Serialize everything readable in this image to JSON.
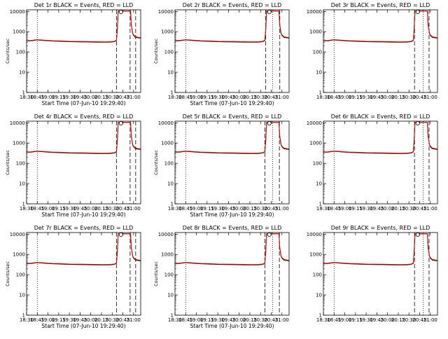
{
  "chart_data": [
    {
      "title": "Det 1r BLACK = Events, RED = LLD",
      "show_xlabel": true,
      "show_ylabel": true,
      "dashed_x": [
        20.6,
        20.92,
        21.05
      ],
      "dotted_x": [
        18.75
      ]
    },
    {
      "title": "Det 2r BLACK = Events, RED = LLD",
      "show_xlabel": true,
      "show_ylabel": true,
      "dashed_x": [
        20.62,
        20.95
      ],
      "dotted_x": [
        18.75,
        20.78
      ]
    },
    {
      "title": "Det 3r BLACK = Events, RED = LLD",
      "show_xlabel": false,
      "show_ylabel": false,
      "dashed_x": [
        20.63,
        20.97
      ],
      "dotted_x": [
        18.75,
        20.83
      ]
    },
    {
      "title": "Det 4r BLACK = Events, RED = LLD",
      "show_xlabel": true,
      "show_ylabel": true,
      "dashed_x": [
        20.6,
        20.92,
        21.05
      ],
      "dotted_x": [
        18.75
      ]
    },
    {
      "title": "Det 5r BLACK = Events, RED = LLD",
      "show_xlabel": true,
      "show_ylabel": true,
      "dashed_x": [
        20.6,
        20.94
      ],
      "dotted_x": [
        18.75,
        20.78
      ]
    },
    {
      "title": "Det 6r BLACK = Events, RED = LLD",
      "show_xlabel": false,
      "show_ylabel": false,
      "dashed_x": [
        20.63,
        20.97
      ],
      "dotted_x": [
        18.75,
        20.83
      ]
    },
    {
      "title": "Det 7r BLACK = Events, RED = LLD",
      "show_xlabel": true,
      "show_ylabel": true,
      "dashed_x": [
        20.6,
        20.92,
        21.05
      ],
      "dotted_x": [
        18.75
      ]
    },
    {
      "title": "Det 8r BLACK = Events, RED = LLD",
      "show_xlabel": true,
      "show_ylabel": true,
      "dashed_x": [
        20.6,
        20.94
      ],
      "dotted_x": [
        18.75,
        20.78
      ]
    },
    {
      "title": "Det 9r BLACK = Events, RED = LLD",
      "show_xlabel": false,
      "show_ylabel": false,
      "dashed_x": [
        20.63,
        20.97
      ],
      "dotted_x": [
        18.75,
        20.83
      ]
    }
  ],
  "common": {
    "type": "line",
    "xlabel": "Start Time (07-Jun-10 19:29:40)",
    "ylabel": "Counts/sec",
    "xlim": [
      18.5,
      21.167
    ],
    "ylim": [
      1,
      12000
    ],
    "yscale": "log",
    "x_ticks": [
      18.5,
      18.75,
      19.0,
      19.25,
      19.5,
      19.75,
      20.0,
      20.25,
      20.5,
      20.75,
      21.0
    ],
    "x_tick_labels": [
      "18:30",
      "18:45",
      "19:00",
      "19:15",
      "19:30",
      "19:45",
      "20:00",
      "20:15",
      "20:30",
      "20:45",
      "21:00"
    ],
    "y_ticks": [
      1,
      10,
      100,
      1000,
      10000
    ],
    "y_tick_labels": [
      "1",
      "10",
      "100",
      "1000",
      "10000"
    ],
    "events_color": "#000000",
    "lld_color": "#e00000",
    "series": [
      {
        "name": "Events",
        "x": [
          18.5,
          18.6,
          18.75,
          18.9,
          19.1,
          19.3,
          19.5,
          19.7,
          19.9,
          20.1,
          20.3,
          20.45,
          20.55,
          20.6,
          20.62,
          20.64,
          20.9,
          20.93,
          20.95,
          20.98,
          21.0,
          21.05,
          21.167
        ],
        "y": [
          350,
          355,
          390,
          370,
          345,
          335,
          320,
          315,
          310,
          305,
          300,
          305,
          320,
          360,
          1200,
          10500,
          10500,
          10500,
          2000,
          800,
          650,
          520,
          480
        ]
      },
      {
        "name": "LLD",
        "x": [
          18.5,
          18.6,
          18.75,
          18.9,
          19.1,
          19.3,
          19.5,
          19.7,
          19.9,
          20.1,
          20.3,
          20.45,
          20.55,
          20.6,
          20.62,
          20.64,
          20.9,
          20.93,
          20.95,
          20.98,
          21.0,
          21.05,
          21.167
        ],
        "y": [
          365,
          370,
          405,
          385,
          360,
          350,
          335,
          330,
          325,
          320,
          315,
          320,
          335,
          375,
          1250,
          10500,
          10500,
          10500,
          2100,
          850,
          700,
          560,
          510
        ]
      }
    ]
  }
}
